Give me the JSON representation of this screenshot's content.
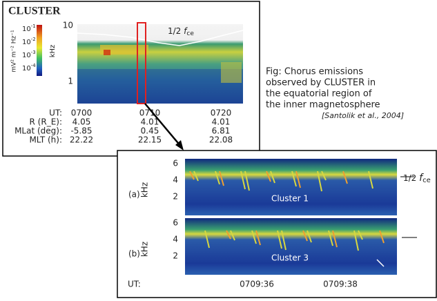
{
  "top_panel": {
    "title": "CLUSTER",
    "colorbar": {
      "unit": "mV² m⁻² Hz⁻¹",
      "ticks": [
        {
          "base": "10",
          "exp": "-1"
        },
        {
          "base": "10",
          "exp": "-2"
        },
        {
          "base": "10",
          "exp": "-3"
        },
        {
          "base": "10",
          "exp": "-4"
        }
      ]
    },
    "y_label": "kHz",
    "y_ticks": [
      "10",
      "1"
    ],
    "fce_label": {
      "fraction": "1/2",
      "symbol": "f",
      "subscript": "ce"
    },
    "table": {
      "rows": [
        [
          "UT:",
          "0700",
          "0710",
          "0720"
        ],
        [
          "R (R_E):",
          "4.05",
          "4.01",
          "4.01"
        ],
        [
          "MLat (deg):",
          "-5.85",
          "0.45",
          "6.81"
        ],
        [
          "MLT (h):",
          "22.22",
          "22.15",
          "22.08"
        ]
      ]
    }
  },
  "caption": {
    "lines": [
      "Fig: Chorus emissions",
      "observed by CLUSTER in",
      "the equatorial region of",
      "the inner magnetosphere"
    ],
    "citation": "[Santolik et al., 2004]"
  },
  "bottom_panel": {
    "panels": [
      {
        "label": "(a)",
        "name": "Cluster 1"
      },
      {
        "label": "(b)",
        "name": "Cluster 3"
      }
    ],
    "y_label": "kHz",
    "y_ticks": [
      "6",
      "4",
      "2"
    ],
    "fce_label": {
      "fraction": "1/2",
      "symbol": "f",
      "subscript": "ce"
    },
    "x_label": "UT:",
    "x_ticks": [
      "0709:36",
      "0709:38"
    ]
  }
}
